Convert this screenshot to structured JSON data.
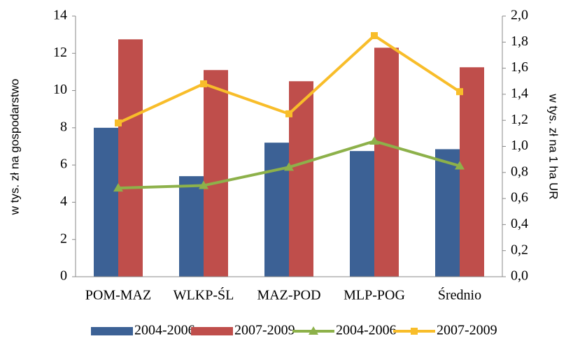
{
  "chart_data": {
    "type": "bar",
    "y_label": "w tys. zł na gospodarstwo",
    "y2_label": "w tys. zł na 1 ha UR",
    "categories": [
      "POM-MAZ",
      "WLKP-ŚL",
      "MAZ-POD",
      "MLP-POG",
      "Średnio"
    ],
    "series": [
      {
        "name": "2004-2006",
        "color": "#3c6195",
        "type": "bar",
        "values": [
          8.0,
          5.4,
          7.2,
          6.75,
          6.85
        ]
      },
      {
        "name": "2007-2009",
        "color": "#bf4e4b",
        "type": "bar",
        "values": [
          12.75,
          11.1,
          10.5,
          12.3,
          11.25
        ]
      },
      {
        "name": "2004-2006",
        "color": "#8db14a",
        "type": "line",
        "marker": "triangle",
        "axis": "y2",
        "values": [
          0.68,
          0.7,
          0.84,
          1.04,
          0.85
        ]
      },
      {
        "name": "2007-2009",
        "color": "#f8bd2a",
        "type": "line",
        "marker": "square",
        "axis": "y2",
        "values": [
          1.18,
          1.48,
          1.25,
          1.85,
          1.42
        ]
      }
    ],
    "ylim": [
      0,
      14
    ],
    "yticks": [
      0,
      2,
      4,
      6,
      8,
      10,
      12,
      14
    ],
    "y2lim": [
      0,
      2.0
    ],
    "y2ticks": [
      {
        "value": 0,
        "label": "0,0"
      },
      {
        "value": 0.2,
        "label": "0,2"
      },
      {
        "value": 0.4,
        "label": "0,4"
      },
      {
        "value": 0.6,
        "label": "0,6"
      },
      {
        "value": 0.8,
        "label": "0,8"
      },
      {
        "value": 1.0,
        "label": "1,0"
      },
      {
        "value": 1.2,
        "label": "1,2"
      },
      {
        "value": 1.4,
        "label": "1,4"
      },
      {
        "value": 1.6,
        "label": "1,6"
      },
      {
        "value": 1.8,
        "label": "1,8"
      },
      {
        "value": 2.0,
        "label": "2,0"
      }
    ],
    "grid": false,
    "legend": "bottom"
  }
}
